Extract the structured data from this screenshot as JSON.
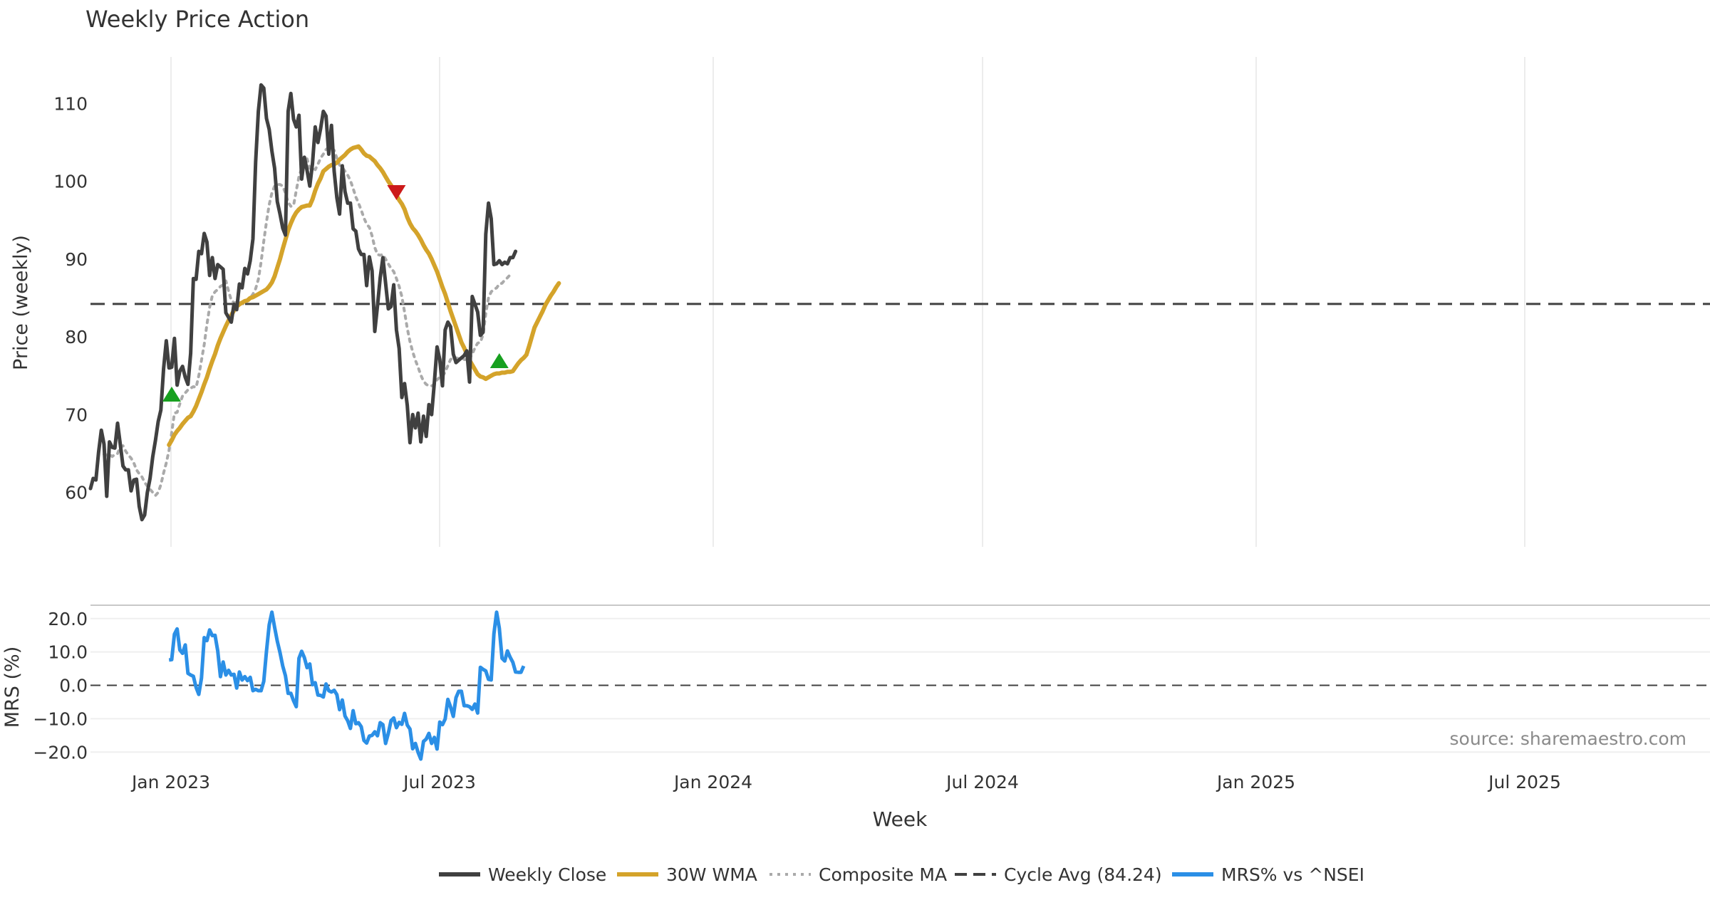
{
  "chart_data": {
    "type": "line",
    "title": "Weekly Price Action",
    "xlabel": "Week",
    "source": "source: sharemaestro.com",
    "x_tick_labels": [
      "Jan 2023",
      "Jul 2023",
      "Jan 2024",
      "Jul 2024",
      "Jan 2025",
      "Jul 2025"
    ],
    "price_panel": {
      "ylabel": "Price (weekly)",
      "ylim": [
        53,
        116
      ],
      "yticks": [
        "60",
        "70",
        "80",
        "90",
        "100",
        "110"
      ],
      "ytick_values": [
        60,
        70,
        80,
        90,
        100,
        110
      ],
      "cycle_avg": 84.24,
      "series": [
        {
          "name": "Weekly Close",
          "color": "#404040",
          "start_week": 0,
          "values": [
            60.5,
            61.8,
            61.6,
            65.2,
            68.0,
            66.2,
            59.5,
            66.5,
            65.8,
            65.7,
            68.9,
            66.2,
            63.4,
            62.9,
            62.9,
            60.2,
            61.6,
            61.7,
            58.2,
            56.5,
            57.1,
            60.0,
            61.8,
            64.6,
            66.7,
            69.1,
            70.6,
            75.9,
            79.5,
            76.0,
            76.1,
            79.8,
            73.8,
            75.6,
            76.2,
            74.8,
            73.9,
            77.9,
            87.5,
            87.4,
            91.0,
            90.7,
            93.3,
            92.2,
            87.9,
            90.2,
            87.5,
            89.3,
            89.0,
            88.7,
            83.1,
            82.5,
            81.9,
            84.2,
            83.5,
            86.8,
            86.3,
            88.8,
            88.1,
            89.8,
            92.6,
            102.5,
            109.0,
            112.4,
            112.0,
            108.1,
            106.7,
            103.9,
            101.7,
            97.4,
            95.8,
            94.0,
            93.1,
            109.0,
            111.3,
            108.0,
            107.0,
            108.5,
            100.3,
            103.1,
            101.4,
            99.4,
            102.3,
            107.0,
            105.0,
            106.8,
            109.0,
            108.4,
            103.5,
            107.2,
            101.3,
            97.9,
            95.8,
            102.0,
            98.7,
            97.2,
            97.2,
            93.9,
            93.6,
            91.3,
            90.6,
            90.6,
            86.6,
            90.3,
            88.5,
            80.7,
            84.0,
            87.6,
            90.2,
            86.9,
            83.6,
            83.9,
            86.7,
            80.9,
            78.5,
            72.2,
            74.0,
            71.2,
            66.4,
            70.0,
            68.3,
            70.2,
            66.5,
            69.8,
            67.2,
            71.3,
            70.0,
            74.1,
            78.7,
            77.1,
            73.7,
            80.9,
            81.9,
            81.3,
            77.8,
            76.7,
            77.0,
            77.3,
            77.6,
            78.2,
            74.2,
            85.2,
            84.2,
            83.2,
            80.2,
            80.6,
            93.2,
            97.2,
            95.2,
            89.3,
            89.4,
            89.8,
            89.3,
            89.6,
            89.4,
            90.2,
            90.2,
            91.0
          ]
        },
        {
          "name": "30W WMA",
          "color": "#d4a32a",
          "start_week": 29,
          "values": [
            66.1,
            66.7,
            67.4,
            67.9,
            68.3,
            68.8,
            69.2,
            69.6,
            69.8,
            70.4,
            71.1,
            72.0,
            72.9,
            73.9,
            74.8,
            75.9,
            76.9,
            77.8,
            78.9,
            79.8,
            80.6,
            81.4,
            82.1,
            82.8,
            83.4,
            83.9,
            84.2,
            84.4,
            84.6,
            84.7,
            85.0,
            85.1,
            85.3,
            85.5,
            85.7,
            85.9,
            86.1,
            86.5,
            87.0,
            87.8,
            88.9,
            90.0,
            91.3,
            92.5,
            93.7,
            94.6,
            95.4,
            96.0,
            96.4,
            96.7,
            96.8,
            96.9,
            96.9,
            97.7,
            98.8,
            99.7,
            100.4,
            101.3,
            101.6,
            101.9,
            102.1,
            102.2,
            102.4,
            102.8,
            103.1,
            103.4,
            103.8,
            104.1,
            104.3,
            104.4,
            104.5,
            104.1,
            103.6,
            103.3,
            103.2,
            102.9,
            102.6,
            102.1,
            101.7,
            101.2,
            100.6,
            100.0,
            99.5,
            98.9,
            98.2,
            97.6,
            97.1,
            96.4,
            95.4,
            94.6,
            94.0,
            93.6,
            93.1,
            92.5,
            91.8,
            91.2,
            90.7,
            90.0,
            89.2,
            88.4,
            87.4,
            86.4,
            85.5,
            84.4,
            83.3,
            82.3,
            81.3,
            80.3,
            79.3,
            78.6,
            77.8,
            77.0,
            76.4,
            75.8,
            75.2,
            74.9,
            74.8,
            74.6,
            74.8,
            75.0,
            75.2,
            75.3,
            75.3,
            75.4,
            75.4,
            75.5,
            75.5,
            75.6,
            76.1,
            76.6,
            77.0,
            77.3,
            77.7,
            78.8,
            80.0,
            81.2,
            81.9,
            82.6,
            83.3,
            84.1,
            84.7,
            85.3,
            85.8,
            86.4,
            86.9
          ]
        },
        {
          "name": "Composite MA",
          "color": "#aaaaaa",
          "start_week": 5,
          "values": [
            64.9,
            64.8,
            64.9,
            64.6,
            64.9,
            65.0,
            65.9,
            66.0,
            65.3,
            64.8,
            64.4,
            63.8,
            62.9,
            62.4,
            62.0,
            61.3,
            60.8,
            60.4,
            60.0,
            59.6,
            60.0,
            61.0,
            62.5,
            63.8,
            65.4,
            67.7,
            70.2,
            70.3,
            71.4,
            72.4,
            72.8,
            73.2,
            73.4,
            73.6,
            73.5,
            75.0,
            77.0,
            79.0,
            81.6,
            83.8,
            85.3,
            85.8,
            86.1,
            86.5,
            86.7,
            87.2,
            85.9,
            84.7,
            84.4,
            84.4,
            84.5,
            84.3,
            84.2,
            84.7,
            85.0,
            85.5,
            86.2,
            87.4,
            89.6,
            92.3,
            94.8,
            97.0,
            98.5,
            99.4,
            99.6,
            99.6,
            99.4,
            98.5,
            97.3,
            96.8,
            96.9,
            98.8,
            100.6,
            101.7,
            102.7,
            102.9,
            101.7,
            101.8,
            101.5,
            102.2,
            103.0,
            103.5,
            104.1,
            104.4,
            104.3,
            104.0,
            103.0,
            102.1,
            101.8,
            101.3,
            100.8,
            100.1,
            99.1,
            98.0,
            97.2,
            96.3,
            95.3,
            94.5,
            94.1,
            93.0,
            91.5,
            90.6,
            90.5,
            90.6,
            90.0,
            89.4,
            88.8,
            88.4,
            87.5,
            86.5,
            85.2,
            83.2,
            81.1,
            79.4,
            78.1,
            77.0,
            76.1,
            75.1,
            74.3,
            73.9,
            73.7,
            73.7,
            73.9,
            74.5,
            74.8,
            74.9,
            75.5,
            76.3,
            77.1,
            77.3,
            77.3,
            77.2,
            77.4,
            77.1,
            77.0,
            77.2,
            77.8,
            78.6,
            79.2,
            79.3,
            80.3,
            83.0,
            85.0,
            85.8,
            86.1,
            86.3,
            86.8,
            86.9,
            87.3,
            87.6,
            88.0,
            88.2
          ]
        }
      ],
      "markers": [
        {
          "type": "buy",
          "week": 30,
          "value": 72.6,
          "color": "#17a01f"
        },
        {
          "type": "sell",
          "week": 113,
          "value": 98.6,
          "color": "#cc1a1a"
        },
        {
          "type": "buy",
          "week": 151,
          "value": 76.9,
          "color": "#17a01f"
        }
      ]
    },
    "mrs_panel": {
      "ylabel": "MRS (%)",
      "ylim": [
        -24,
        24
      ],
      "yticks": [
        "20.0",
        "10.0",
        "0.0",
        "−10.0",
        "−20.0"
      ],
      "ytick_values": [
        20,
        10,
        0,
        -10,
        -20
      ],
      "series": [
        {
          "name": "MRS% vs ^NSEI",
          "color": "#2b8fe6",
          "start_week": 29,
          "values": [
            7.6,
            7.7,
            15.3,
            16.9,
            10.6,
            9.6,
            12.1,
            3.6,
            3.1,
            2.7,
            -0.6,
            -2.7,
            2.2,
            14.3,
            13.4,
            16.6,
            14.9,
            15.0,
            10.3,
            2.6,
            7.0,
            3.1,
            4.5,
            3.1,
            3.3,
            -0.8,
            4.0,
            1.6,
            2.6,
            1.4,
            2.4,
            -1.6,
            -1.2,
            -1.6,
            -1.6,
            1.2,
            10.2,
            18.1,
            21.9,
            17.4,
            13.2,
            9.8,
            5.8,
            2.9,
            -2.4,
            -2.4,
            -4.6,
            -6.4,
            8.1,
            10.2,
            8.3,
            5.3,
            6.4,
            0.2,
            0.8,
            -2.9,
            -3.0,
            -3.5,
            0.4,
            -1.6,
            -2.0,
            -1.5,
            -2.8,
            -7.3,
            -4.4,
            -9.2,
            -10.6,
            -12.9,
            -7.6,
            -11.5,
            -11.2,
            -12.4,
            -16.5,
            -17.3,
            -15.2,
            -15.0,
            -13.9,
            -15.1,
            -11.2,
            -11.8,
            -17.4,
            -14.4,
            -10.6,
            -9.8,
            -12.7,
            -11.1,
            -11.7,
            -8.4,
            -11.9,
            -13.1,
            -19.0,
            -17.4,
            -20.1,
            -22.1,
            -16.8,
            -16.1,
            -14.4,
            -17.4,
            -15.6,
            -19.1,
            -11.0,
            -11.8,
            -10.1,
            -4.2,
            -6.5,
            -9.3,
            -3.7,
            -1.8,
            -1.8,
            -6.1,
            -6.1,
            -6.4,
            -7.2,
            -5.6,
            -8.3,
            5.4,
            4.8,
            4.3,
            1.8,
            1.6,
            15.4,
            21.9,
            17.1,
            8.1,
            7.3,
            10.3,
            8.4,
            6.9,
            4.0,
            3.9,
            3.9,
            5.8
          ]
        }
      ]
    },
    "legend": {
      "placement": "bottom-center",
      "items": [
        {
          "label": "Weekly Close",
          "color": "#404040",
          "style": "solid"
        },
        {
          "label": "30W WMA",
          "color": "#d4a32a",
          "style": "solid"
        },
        {
          "label": "Composite MA",
          "color": "#aaaaaa",
          "style": "dotted"
        },
        {
          "label": "Cycle Avg (84.24)",
          "color": "#404040",
          "style": "dashed"
        },
        {
          "label": "MRS% vs ^NSEI",
          "color": "#2b8fe6",
          "style": "solid"
        }
      ]
    }
  }
}
